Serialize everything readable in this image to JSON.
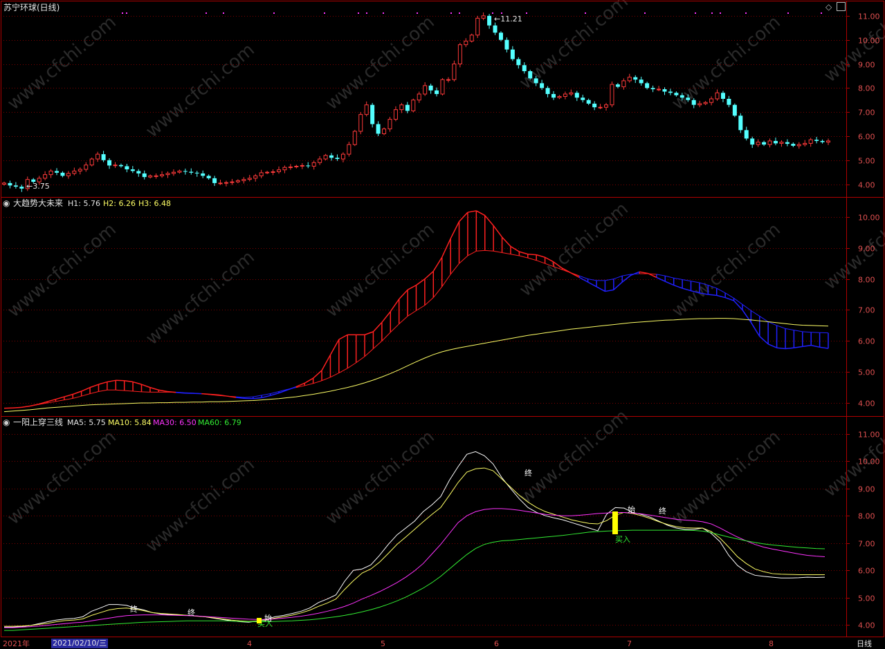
{
  "window": {
    "title": "苏宁环球(日线)",
    "period_label": "日线"
  },
  "colors": {
    "frame": "#b00000",
    "grid": "#800000",
    "up": "#ff3a3a",
    "down": "#54ffff",
    "axis_text": "#e05050",
    "ma5": "#ffffff",
    "ma10": "#ffff66",
    "ma30": "#ff33ff",
    "ma60": "#33ee33",
    "cloud_up": "#ff2020",
    "cloud_down": "#2020ff",
    "h3": "#ffff66"
  },
  "panel_main": {
    "high_label": "11.21",
    "low_label": "3.75",
    "y_ticks": [
      "11.00",
      "10.00",
      "9.00",
      "8.00",
      "7.00",
      "6.00",
      "5.00",
      "4.00"
    ]
  },
  "panel_trend": {
    "indicator_name": "大趋势大未来",
    "h1_label": "H1: 5.76",
    "h2_label": "H2: 6.26",
    "h3_label": "H3: 6.48",
    "y_ticks": [
      "10.00",
      "9.00",
      "8.00",
      "7.00",
      "6.00",
      "5.00",
      "4.00"
    ]
  },
  "panel_ma": {
    "indicator_name": "一阳上穿三线",
    "ma5_label": "MA5: 5.75",
    "ma10_label": "MA10: 5.84",
    "ma30_label": "MA30: 6.50",
    "ma60_label": "MA60: 6.79",
    "signal_buy": "买入",
    "signal_end": "终",
    "signal_start": "始",
    "y_ticks": [
      "11.00",
      "10.00",
      "9.00",
      "8.00",
      "7.00",
      "6.00",
      "5.00",
      "4.00"
    ]
  },
  "x_axis": {
    "year_label": "2021年",
    "cursor_date": "2021/02/10/三",
    "months": [
      "4",
      "5",
      "6",
      "7",
      "8"
    ]
  },
  "watermark": "www.cfchi.com",
  "chart_data": [
    {
      "type": "candlestick",
      "title": "苏宁环球(日线)",
      "ylim": [
        3.5,
        11.6
      ],
      "annotations": {
        "high": 11.21,
        "low": 3.75
      },
      "close": [
        4.05,
        3.95,
        3.9,
        3.82,
        4.2,
        4.1,
        4.25,
        4.4,
        4.55,
        4.48,
        4.35,
        4.45,
        4.55,
        4.62,
        4.8,
        5.05,
        5.25,
        5.0,
        4.78,
        4.8,
        4.75,
        4.62,
        4.55,
        4.45,
        4.3,
        4.35,
        4.35,
        4.4,
        4.45,
        4.5,
        4.55,
        4.52,
        4.48,
        4.45,
        4.35,
        4.25,
        4.05,
        4.05,
        4.07,
        4.1,
        4.15,
        4.2,
        4.25,
        4.35,
        4.48,
        4.5,
        4.52,
        4.6,
        4.7,
        4.72,
        4.75,
        4.78,
        4.75,
        4.9,
        5.05,
        5.2,
        5.1,
        5.05,
        5.25,
        5.65,
        6.2,
        6.9,
        7.3,
        6.5,
        6.1,
        6.3,
        6.7,
        7.1,
        7.3,
        7.05,
        7.5,
        7.75,
        8.1,
        7.9,
        7.75,
        8.35,
        8.35,
        9.0,
        9.8,
        9.95,
        10.2,
        10.9,
        11.0,
        10.6,
        10.3,
        10.0,
        9.6,
        9.2,
        8.95,
        8.7,
        8.4,
        8.2,
        8.0,
        7.75,
        7.6,
        7.65,
        7.75,
        7.8,
        7.6,
        7.5,
        7.35,
        7.2,
        7.2,
        7.3,
        8.15,
        8.05,
        8.3,
        8.45,
        8.35,
        8.2,
        8.0,
        7.95,
        7.95,
        7.85,
        7.8,
        7.7,
        7.6,
        7.5,
        7.3,
        7.35,
        7.4,
        7.55,
        7.8,
        7.55,
        7.3,
        6.85,
        6.25,
        5.9,
        5.65,
        5.75,
        5.65,
        5.8,
        5.7,
        5.75,
        5.68,
        5.6,
        5.65,
        5.7,
        5.85,
        5.8,
        5.75,
        5.8
      ]
    },
    {
      "type": "area",
      "title": "大趋势大未来",
      "ylim": [
        3.6,
        10.6
      ],
      "series": [
        {
          "name": "H1",
          "last": 5.76,
          "values": [
            3.83,
            3.84,
            3.86,
            3.9,
            3.96,
            4.04,
            4.12,
            4.2,
            4.28,
            4.38,
            4.5,
            4.6,
            4.68,
            4.73,
            4.72,
            4.68,
            4.6,
            4.5,
            4.42,
            4.37,
            4.34,
            4.32,
            4.31,
            4.3,
            4.28,
            4.26,
            4.22,
            4.18,
            4.15,
            4.14,
            4.17,
            4.24,
            4.32,
            4.42,
            4.52,
            4.64,
            4.8,
            5.05,
            5.55,
            6.05,
            6.2,
            6.2,
            6.2,
            6.3,
            6.6,
            6.95,
            7.35,
            7.65,
            7.8,
            8.0,
            8.25,
            8.7,
            9.3,
            9.85,
            10.15,
            10.2,
            10.05,
            9.72,
            9.35,
            9.05,
            8.88,
            8.8,
            8.78,
            8.7,
            8.55,
            8.35,
            8.2,
            8.05,
            7.9,
            7.75,
            7.6,
            7.65,
            7.9,
            8.12,
            8.23,
            8.18,
            8.05,
            7.92,
            7.8,
            7.7,
            7.62,
            7.55,
            7.5,
            7.47,
            7.4,
            7.3,
            7.0,
            6.6,
            6.15,
            5.9,
            5.78,
            5.75,
            5.78,
            5.82,
            5.86,
            5.8,
            5.76
          ]
        },
        {
          "name": "H2",
          "last": 6.26,
          "values": [
            3.83,
            3.84,
            3.86,
            3.9,
            3.95,
            4.0,
            4.05,
            4.1,
            4.15,
            4.22,
            4.3,
            4.37,
            4.42,
            4.42,
            4.4,
            4.38,
            4.36,
            4.35,
            4.35,
            4.35,
            4.35,
            4.33,
            4.32,
            4.3,
            4.27,
            4.24,
            4.22,
            4.2,
            4.18,
            4.2,
            4.25,
            4.3,
            4.37,
            4.44,
            4.5,
            4.56,
            4.63,
            4.72,
            4.83,
            4.97,
            5.12,
            5.3,
            5.5,
            5.75,
            6.0,
            6.28,
            6.55,
            6.8,
            6.98,
            7.15,
            7.4,
            7.75,
            8.15,
            8.5,
            8.75,
            8.9,
            8.92,
            8.9,
            8.85,
            8.8,
            8.75,
            8.68,
            8.6,
            8.5,
            8.4,
            8.3,
            8.2,
            8.1,
            8.0,
            7.95,
            7.95,
            8.0,
            8.1,
            8.15,
            8.17,
            8.17,
            8.15,
            8.1,
            8.03,
            7.98,
            7.93,
            7.88,
            7.8,
            7.7,
            7.55,
            7.38,
            7.18,
            6.98,
            6.8,
            6.62,
            6.5,
            6.4,
            6.35,
            6.3,
            6.28,
            6.27,
            6.26
          ]
        },
        {
          "name": "H3",
          "last": 6.48,
          "values": [
            3.72,
            3.74,
            3.76,
            3.78,
            3.81,
            3.84,
            3.86,
            3.88,
            3.9,
            3.92,
            3.94,
            3.95,
            3.96,
            3.97,
            3.98,
            3.99,
            4.0,
            4.0,
            4.01,
            4.01,
            4.02,
            4.02,
            4.03,
            4.03,
            4.04,
            4.04,
            4.05,
            4.06,
            4.07,
            4.08,
            4.1,
            4.12,
            4.14,
            4.17,
            4.2,
            4.24,
            4.28,
            4.33,
            4.38,
            4.44,
            4.5,
            4.57,
            4.65,
            4.74,
            4.84,
            4.95,
            5.07,
            5.2,
            5.33,
            5.45,
            5.56,
            5.65,
            5.72,
            5.78,
            5.83,
            5.88,
            5.93,
            5.98,
            6.03,
            6.08,
            6.13,
            6.18,
            6.22,
            6.26,
            6.3,
            6.34,
            6.38,
            6.41,
            6.44,
            6.47,
            6.5,
            6.53,
            6.56,
            6.59,
            6.61,
            6.63,
            6.65,
            6.67,
            6.68,
            6.7,
            6.71,
            6.72,
            6.72,
            6.73,
            6.73,
            6.72,
            6.7,
            6.68,
            6.65,
            6.62,
            6.59,
            6.56,
            6.53,
            6.51,
            6.5,
            6.49,
            6.48
          ]
        }
      ]
    },
    {
      "type": "line",
      "title": "一阳上穿三线",
      "ylim": [
        3.6,
        11.6
      ],
      "series": [
        {
          "name": "MA5",
          "last": 5.75,
          "values": [
            3.92,
            3.92,
            3.94,
            3.98,
            4.05,
            4.12,
            4.18,
            4.22,
            4.24,
            4.3,
            4.5,
            4.62,
            4.75,
            4.75,
            4.72,
            4.62,
            4.55,
            4.45,
            4.4,
            4.38,
            4.37,
            4.35,
            4.33,
            4.3,
            4.25,
            4.2,
            4.15,
            4.12,
            4.1,
            4.14,
            4.2,
            4.3,
            4.35,
            4.42,
            4.5,
            4.62,
            4.82,
            4.95,
            5.1,
            5.6,
            6.0,
            6.05,
            6.2,
            6.55,
            6.95,
            7.3,
            7.55,
            7.8,
            8.15,
            8.4,
            8.7,
            9.3,
            9.8,
            10.25,
            10.35,
            10.2,
            9.9,
            9.4,
            9.0,
            8.62,
            8.3,
            8.12,
            8.0,
            7.92,
            7.85,
            7.75,
            7.65,
            7.55,
            7.45,
            8.05,
            8.3,
            8.28,
            8.12,
            8.05,
            7.95,
            7.8,
            7.65,
            7.55,
            7.5,
            7.5,
            7.55,
            7.35,
            7.05,
            6.55,
            6.18,
            5.95,
            5.82,
            5.78,
            5.75,
            5.72,
            5.72,
            5.73,
            5.75,
            5.74,
            5.75
          ]
        },
        {
          "name": "MA10",
          "last": 5.84,
          "values": [
            3.95,
            3.95,
            3.96,
            3.98,
            4.02,
            4.06,
            4.12,
            4.16,
            4.18,
            4.22,
            4.35,
            4.45,
            4.55,
            4.6,
            4.62,
            4.58,
            4.52,
            4.45,
            4.42,
            4.4,
            4.38,
            4.35,
            4.32,
            4.3,
            4.26,
            4.22,
            4.18,
            4.15,
            4.13,
            4.14,
            4.18,
            4.25,
            4.3,
            4.36,
            4.44,
            4.54,
            4.68,
            4.8,
            4.95,
            5.3,
            5.62,
            5.9,
            6.05,
            6.3,
            6.62,
            6.95,
            7.22,
            7.5,
            7.78,
            8.05,
            8.3,
            8.75,
            9.22,
            9.6,
            9.72,
            9.75,
            9.65,
            9.35,
            9.05,
            8.75,
            8.5,
            8.3,
            8.15,
            8.05,
            7.95,
            7.85,
            7.78,
            7.72,
            7.7,
            7.82,
            8.02,
            8.12,
            8.08,
            8.0,
            7.9,
            7.78,
            7.68,
            7.6,
            7.56,
            7.55,
            7.55,
            7.42,
            7.18,
            6.85,
            6.5,
            6.25,
            6.05,
            5.95,
            5.88,
            5.86,
            5.85,
            5.84,
            5.84,
            5.84,
            5.84
          ]
        },
        {
          "name": "MA30",
          "last": 6.5,
          "values": [
            3.9,
            3.9,
            3.92,
            3.94,
            3.96,
            3.99,
            4.02,
            4.05,
            4.08,
            4.1,
            4.15,
            4.2,
            4.25,
            4.3,
            4.34,
            4.36,
            4.37,
            4.37,
            4.37,
            4.36,
            4.35,
            4.34,
            4.33,
            4.31,
            4.29,
            4.27,
            4.25,
            4.23,
            4.21,
            4.2,
            4.2,
            4.22,
            4.25,
            4.28,
            4.32,
            4.37,
            4.43,
            4.5,
            4.58,
            4.68,
            4.8,
            4.95,
            5.08,
            5.22,
            5.38,
            5.55,
            5.75,
            5.98,
            6.25,
            6.6,
            6.95,
            7.35,
            7.75,
            8.0,
            8.15,
            8.23,
            8.26,
            8.26,
            8.24,
            8.2,
            8.15,
            8.1,
            8.05,
            8.02,
            8.0,
            8.0,
            8.02,
            8.05,
            8.08,
            8.1,
            8.12,
            8.12,
            8.1,
            8.07,
            8.02,
            7.97,
            7.92,
            7.87,
            7.84,
            7.82,
            7.78,
            7.7,
            7.55,
            7.38,
            7.22,
            7.08,
            6.95,
            6.85,
            6.78,
            6.72,
            6.66,
            6.6,
            6.55,
            6.52,
            6.5
          ]
        },
        {
          "name": "MA60",
          "last": 6.79,
          "values": [
            3.8,
            3.8,
            3.82,
            3.84,
            3.86,
            3.88,
            3.9,
            3.92,
            3.94,
            3.96,
            3.98,
            4.0,
            4.02,
            4.04,
            4.06,
            4.08,
            4.1,
            4.11,
            4.12,
            4.13,
            4.14,
            4.15,
            4.15,
            4.15,
            4.15,
            4.15,
            4.14,
            4.13,
            4.12,
            4.12,
            4.12,
            4.13,
            4.14,
            4.15,
            4.17,
            4.19,
            4.22,
            4.26,
            4.3,
            4.35,
            4.41,
            4.48,
            4.56,
            4.65,
            4.76,
            4.88,
            5.02,
            5.18,
            5.35,
            5.55,
            5.78,
            6.05,
            6.32,
            6.58,
            6.8,
            6.95,
            7.03,
            7.08,
            7.1,
            7.13,
            7.16,
            7.19,
            7.22,
            7.25,
            7.28,
            7.32,
            7.36,
            7.4,
            7.42,
            7.44,
            7.45,
            7.46,
            7.47,
            7.47,
            7.47,
            7.47,
            7.47,
            7.47,
            7.47,
            7.46,
            7.44,
            7.38,
            7.3,
            7.22,
            7.15,
            7.08,
            7.02,
            6.97,
            6.93,
            6.9,
            6.87,
            6.84,
            6.82,
            6.8,
            6.79
          ]
        }
      ]
    }
  ]
}
